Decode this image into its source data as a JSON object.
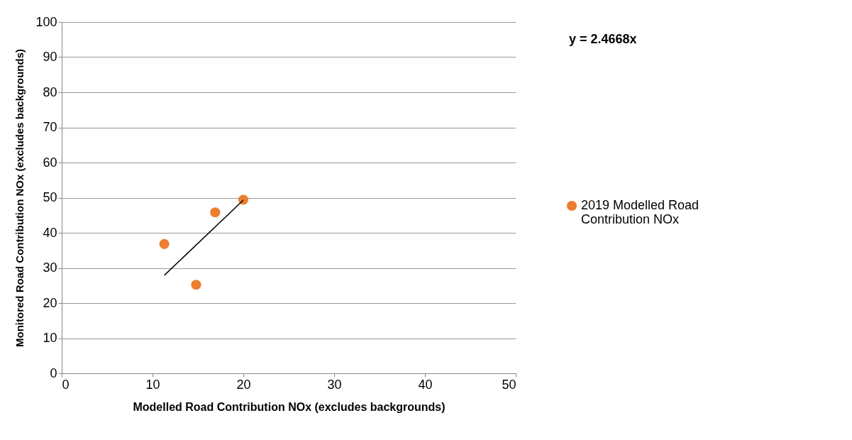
{
  "chart_data": {
    "type": "scatter",
    "xlabel": "Modelled Road Contribution NOx (excludes backgrounds)",
    "ylabel": "Monitored Road Contribution NOx (excludes backgrounds)",
    "xlim": [
      0,
      50
    ],
    "xticks": [
      0,
      10,
      20,
      30,
      40,
      50
    ],
    "ylim": [
      0,
      100
    ],
    "yticks": [
      0,
      10,
      20,
      30,
      40,
      50,
      60,
      70,
      80,
      90,
      100
    ],
    "grid": "y",
    "legend": "right",
    "annotations": [
      "y = 2.4668x"
    ],
    "series": [
      {
        "name": "2019 Modelled Road Contribution NOx",
        "color": "#ed7d31",
        "marker": "circle",
        "x": [
          11.3,
          14.8,
          16.9,
          20.0
        ],
        "values": [
          36.8,
          25.2,
          45.8,
          49.4
        ]
      },
      {
        "type": "line",
        "color": "#000000",
        "marker": "none",
        "x": [
          11.3,
          20.0
        ],
        "values": [
          27.9,
          49.3
        ]
      }
    ]
  }
}
